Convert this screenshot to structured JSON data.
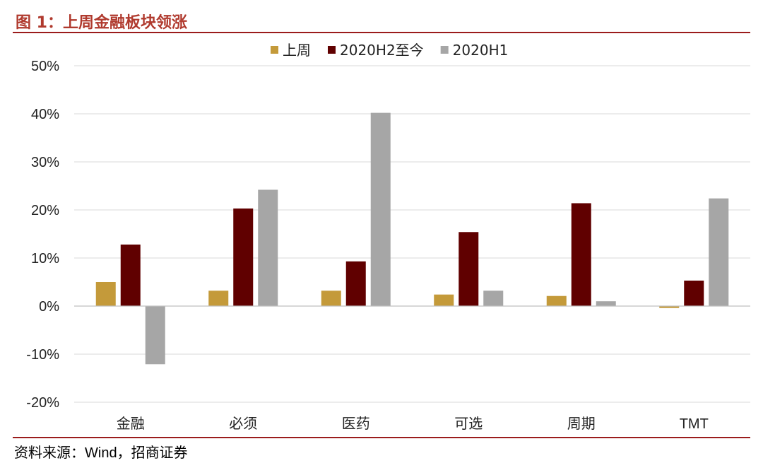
{
  "header": {
    "figure_label": "图 1：",
    "title": "上周金融板块领涨"
  },
  "source": {
    "label": "资料来源：",
    "text": "Wind，招商证券"
  },
  "colors": {
    "accent": "#b03a2e",
    "rule": "#9b1c1c",
    "grid": "#d9d9d9"
  },
  "chart_data": {
    "type": "bar",
    "title": "",
    "xlabel": "",
    "ylabel": "",
    "categories": [
      "金融",
      "必须",
      "医药",
      "可选",
      "周期",
      "TMT"
    ],
    "series": [
      {
        "name": "上周",
        "color": "#c49a3a",
        "values": [
          5.0,
          3.2,
          3.2,
          2.4,
          2.1,
          -0.4
        ]
      },
      {
        "name": "2020H2至今",
        "color": "#600000",
        "values": [
          12.8,
          20.3,
          9.3,
          15.4,
          21.4,
          5.3
        ]
      },
      {
        "name": "2020H1",
        "color": "#a6a6a6",
        "values": [
          -12.1,
          24.2,
          40.2,
          3.2,
          1.0,
          22.4
        ]
      }
    ],
    "ylim": [
      -20,
      50
    ],
    "yticks": [
      -20,
      -10,
      0,
      10,
      20,
      30,
      40,
      50
    ],
    "ytick_format": "percent",
    "grid": true,
    "legend_position": "top-center"
  }
}
